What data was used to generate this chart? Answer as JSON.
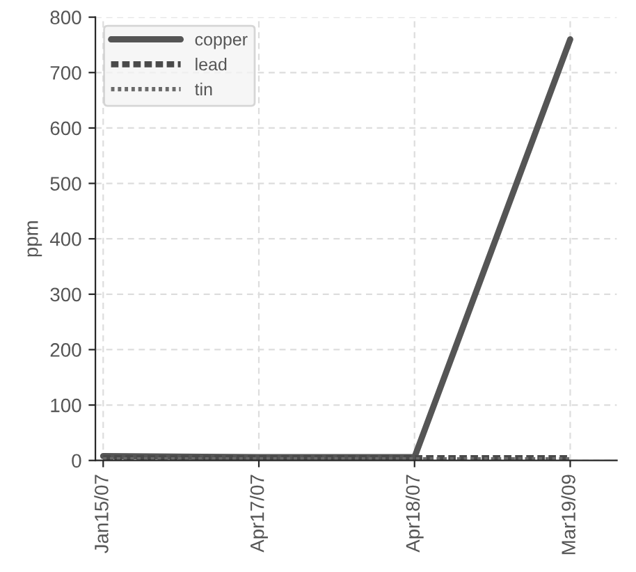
{
  "chart_data": {
    "type": "line",
    "ylabel": "ppm",
    "categories": [
      "Jan15/07",
      "Apr17/07",
      "Apr18/07",
      "Mar19/09"
    ],
    "series": [
      {
        "name": "copper",
        "color": "#555555",
        "line_style": "solid",
        "values": [
          8,
          6,
          6,
          760
        ]
      },
      {
        "name": "lead",
        "color": "#4a4a4a",
        "line_style": "dashed",
        "values": [
          4,
          4,
          4,
          4
        ]
      },
      {
        "name": "tin",
        "color": "#6a6a6a",
        "line_style": "dotted",
        "values": [
          2,
          2,
          2,
          2
        ]
      }
    ],
    "ylim": [
      0,
      800
    ],
    "yticks": [
      0,
      100,
      200,
      300,
      400,
      500,
      600,
      700,
      800
    ],
    "grid": true,
    "legend": "top left",
    "marker": "none"
  }
}
